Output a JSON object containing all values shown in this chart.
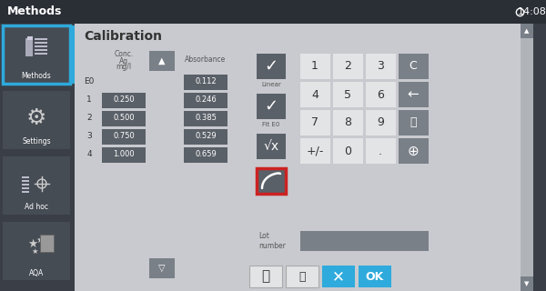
{
  "bg_dark": "#3a3f47",
  "bg_panel": "#c8cacf",
  "bg_light": "#d8d8d8",
  "bg_numpad": "#e2e4e6",
  "cell_dark": "#5a6068",
  "cell_mid": "#7a8088",
  "btn_blue": "#2eaadc",
  "btn_grey": "#9aa0a8",
  "text_white": "#ffffff",
  "text_dark": "#333333",
  "text_grey": "#555555",
  "red_border": "#cc2222",
  "title_bar": "#2a2e35",
  "sidebar_selected_border": "#2eaadc",
  "header": "Methods",
  "time": "14:08",
  "panel_title": "Calibration",
  "rows": [
    {
      "label": "E0",
      "conc": null,
      "abs": "0.112"
    },
    {
      "label": "1",
      "conc": "0.250",
      "abs": "0.246"
    },
    {
      "label": "2",
      "conc": "0.500",
      "abs": "0.385"
    },
    {
      "label": "3",
      "conc": "0.750",
      "abs": "0.529"
    },
    {
      "label": "4",
      "conc": "1.000",
      "abs": "0.659"
    }
  ],
  "sidebar_items": [
    {
      "label": "Methods",
      "selected": true
    },
    {
      "label": "Settings",
      "selected": false
    },
    {
      "label": "Ad hoc",
      "selected": false
    },
    {
      "label": "AQA",
      "selected": false
    }
  ],
  "numpad": [
    [
      "1",
      "2",
      "3",
      "C"
    ],
    [
      "4",
      "5",
      "6",
      "<"
    ],
    [
      "7",
      "8",
      "9",
      "T"
    ],
    [
      "+/-",
      "0",
      ".",
      "O"
    ]
  ],
  "lot_label": "Lot\nnumber"
}
